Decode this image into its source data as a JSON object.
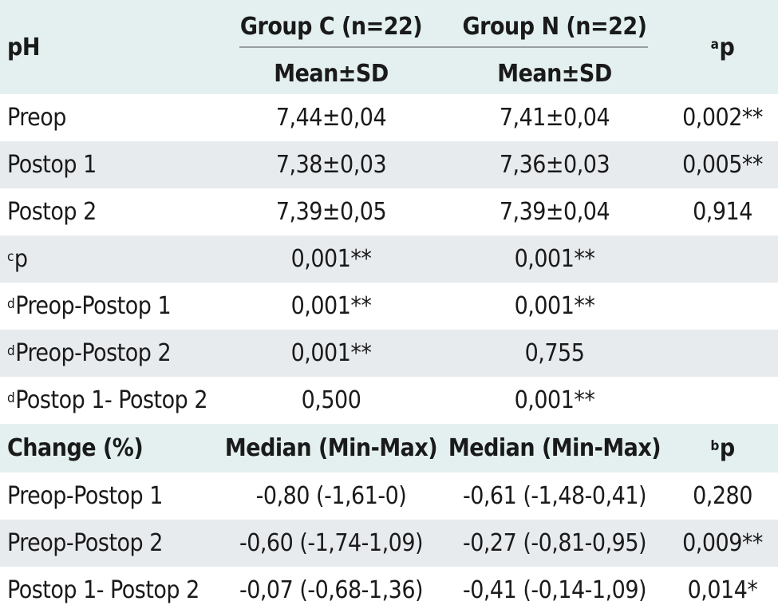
{
  "header": {
    "param": "pH",
    "group_c": "Group C (n=22)",
    "group_n": "Group N (n=22)",
    "p_sup": "a",
    "p_label": "p",
    "stat_c": "Mean±SD",
    "stat_n": "Mean±SD"
  },
  "rows": [
    {
      "label": "Preop",
      "c": "7,44±0,04",
      "n": "7,41±0,04",
      "p": "0,002**"
    },
    {
      "label": "Postop 1",
      "c": "7,38±0,03",
      "n": "7,36±0,03",
      "p": "0,005**"
    },
    {
      "label": "Postop 2",
      "c": "7,39±0,05",
      "n": "7,39±0,04",
      "p": "0,914"
    }
  ],
  "cp_row": {
    "sup": "c",
    "label": "p",
    "c": "0,001**",
    "n": "0,001**"
  },
  "d_rows": [
    {
      "sup": "d",
      "label": "Preop-Postop 1",
      "c": "0,001**",
      "n": "0,001**"
    },
    {
      "sup": "d",
      "label": "Preop-Postop 2",
      "c": "0,001**",
      "n": "0,755"
    },
    {
      "sup": "d",
      "label": "Postop 1- Postop 2",
      "c": "0,500",
      "n": "0,001**"
    }
  ],
  "change_header": {
    "label": "Change (%)",
    "c": "Median (Min-Max)",
    "n": "Median (Min-Max)",
    "p_sup": "b",
    "p_label": "p"
  },
  "change_rows": [
    {
      "label": "Preop-Postop 1",
      "c": "-0,80 (-1,61-0)",
      "n": "-0,61 (-1,48-0,41)",
      "p": "0,280"
    },
    {
      "label": "Preop-Postop 2",
      "c": "-0,60 (-1,74-1,09)",
      "n": "-0,27 (-0,81-0,95)",
      "p": "0,009**"
    },
    {
      "label": "Postop 1- Postop 2",
      "c": "-0,07 (-0,68-1,36)",
      "n": "-0,41 (-0,14-1,09)",
      "p": "0,014*"
    }
  ],
  "colors": {
    "header_bg": "#e3f0ef",
    "alt_row_bg": "#e8ebee",
    "rule": "#9a9fa2"
  }
}
